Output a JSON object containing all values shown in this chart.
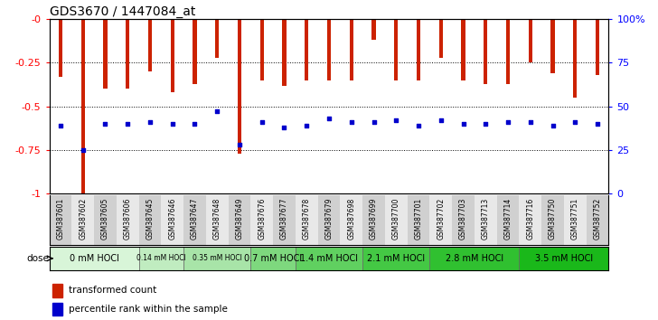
{
  "title": "GDS3670 / 1447084_at",
  "samples": [
    "GSM387601",
    "GSM387602",
    "GSM387605",
    "GSM387606",
    "GSM387645",
    "GSM387646",
    "GSM387647",
    "GSM387648",
    "GSM387649",
    "GSM387676",
    "GSM387677",
    "GSM387678",
    "GSM387679",
    "GSM387698",
    "GSM387699",
    "GSM387700",
    "GSM387701",
    "GSM387702",
    "GSM387703",
    "GSM387713",
    "GSM387714",
    "GSM387716",
    "GSM387750",
    "GSM387751",
    "GSM387752"
  ],
  "bar_values": [
    -0.33,
    -1.0,
    -0.4,
    -0.4,
    -0.3,
    -0.42,
    -0.37,
    -0.22,
    -0.77,
    -0.35,
    -0.38,
    -0.35,
    -0.35,
    -0.35,
    -0.12,
    -0.35,
    -0.35,
    -0.22,
    -0.35,
    -0.37,
    -0.37,
    -0.25,
    -0.31,
    -0.45,
    -0.32
  ],
  "blue_dot_values": [
    -0.61,
    -0.75,
    -0.6,
    -0.6,
    -0.59,
    -0.6,
    -0.6,
    -0.53,
    -0.72,
    -0.59,
    -0.62,
    -0.61,
    -0.57,
    -0.59,
    -0.59,
    -0.58,
    -0.61,
    -0.58,
    -0.6,
    -0.6,
    -0.59,
    -0.59,
    -0.61,
    -0.59,
    -0.6
  ],
  "dose_groups": [
    {
      "label": "0 mM HOCl",
      "start": 0,
      "end": 4,
      "color": "#d8f5d8"
    },
    {
      "label": "0.14 mM HOCl",
      "start": 4,
      "end": 6,
      "color": "#c0ecc0"
    },
    {
      "label": "0.35 mM HOCl",
      "start": 6,
      "end": 9,
      "color": "#a8e4a8"
    },
    {
      "label": "0.7 mM HOCl",
      "start": 9,
      "end": 11,
      "color": "#7ed87e"
    },
    {
      "label": "1.4 mM HOCl",
      "start": 11,
      "end": 14,
      "color": "#60d060"
    },
    {
      "label": "2.1 mM HOCl",
      "start": 14,
      "end": 17,
      "color": "#44c844"
    },
    {
      "label": "2.8 mM HOCl",
      "start": 17,
      "end": 21,
      "color": "#30c030"
    },
    {
      "label": "3.5 mM HOCl",
      "start": 21,
      "end": 25,
      "color": "#1ab81a"
    }
  ],
  "bar_color": "#cc2200",
  "blue_dot_color": "#0000cc",
  "ylim": [
    -1.0,
    0.0
  ],
  "left_yticks": [
    0.0,
    -0.25,
    -0.5,
    -0.75,
    -1.0
  ],
  "left_yticklabels": [
    "-0",
    "-0.25",
    "-0.5",
    "-0.75",
    "-1"
  ],
  "right_yticks": [
    0,
    25,
    50,
    75,
    100
  ],
  "right_yticklabels": [
    "0",
    "25",
    "50",
    "75",
    "100%"
  ],
  "grid_values": [
    -0.25,
    -0.5,
    -0.75
  ],
  "legend_items": [
    "transformed count",
    "percentile rank within the sample"
  ],
  "legend_colors": [
    "#cc2200",
    "#0000cc"
  ],
  "dose_label": "dose",
  "bar_width": 0.18
}
